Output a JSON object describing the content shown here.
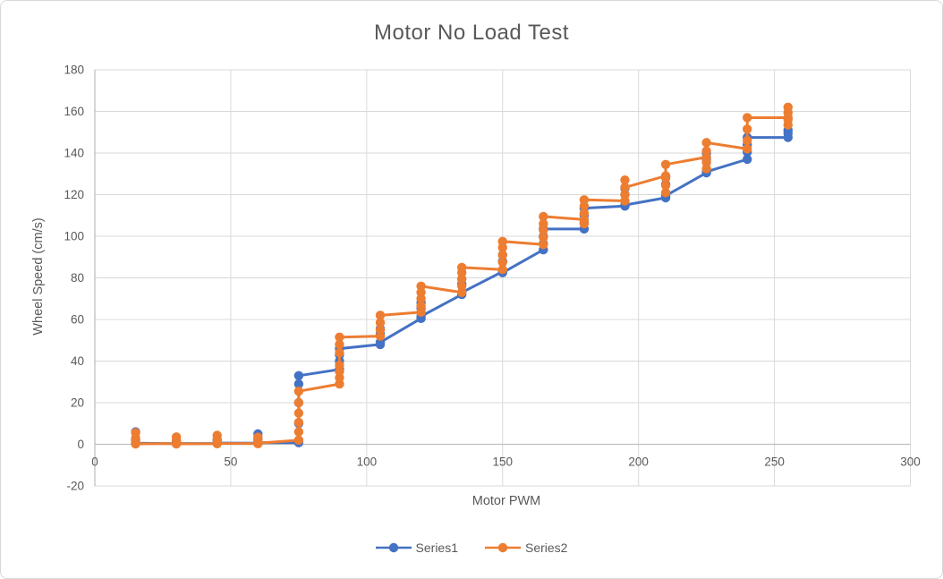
{
  "chart_data": {
    "type": "line",
    "title": "Motor No Load Test",
    "xlabel": "Motor PWM",
    "ylabel": "Wheel Speed (cm/s)",
    "xlim": [
      0,
      300
    ],
    "ylim": [
      -20,
      180
    ],
    "xticks": [
      0,
      50,
      100,
      150,
      200,
      250,
      300
    ],
    "yticks": [
      -20,
      0,
      20,
      40,
      60,
      80,
      100,
      120,
      140,
      160,
      180
    ],
    "grid": true,
    "legend_position": "bottom",
    "grid_color": "#d9d9d9",
    "axis_color": "#bfbfbf",
    "text_color": "#595959",
    "marker_radius": 5.2,
    "line_width": 3,
    "series": [
      {
        "name": "Series1",
        "color": "#4472C4",
        "points": [
          [
            15,
            6
          ],
          [
            15,
            2
          ],
          [
            15,
            0.5
          ],
          [
            30,
            0.3
          ],
          [
            30,
            1.5
          ],
          [
            30,
            0.4
          ],
          [
            45,
            0.4
          ],
          [
            45,
            1.8
          ],
          [
            45,
            0.6
          ],
          [
            60,
            0.5
          ],
          [
            60,
            5
          ],
          [
            60,
            2.5
          ],
          [
            60,
            0.8
          ],
          [
            75,
            0.8
          ],
          [
            75,
            10
          ],
          [
            75,
            20
          ],
          [
            75,
            29
          ],
          [
            75,
            33
          ],
          [
            90,
            36
          ],
          [
            90,
            40
          ],
          [
            90,
            43
          ],
          [
            90,
            46
          ],
          [
            105,
            48
          ],
          [
            105,
            55.5
          ],
          [
            105,
            53
          ],
          [
            105,
            49
          ],
          [
            120,
            60.5
          ],
          [
            120,
            68
          ],
          [
            120,
            65.5
          ],
          [
            120,
            61.5
          ],
          [
            135,
            72
          ],
          [
            135,
            79.5
          ],
          [
            135,
            77
          ],
          [
            135,
            73
          ],
          [
            150,
            83
          ],
          [
            150,
            91
          ],
          [
            150,
            88
          ],
          [
            150,
            82.5
          ],
          [
            165,
            93.5
          ],
          [
            165,
            96.5
          ],
          [
            165,
            100
          ],
          [
            165,
            103.5
          ],
          [
            180,
            103.5
          ],
          [
            180,
            106.5
          ],
          [
            180,
            110
          ],
          [
            180,
            113.5
          ],
          [
            195,
            114.5
          ],
          [
            195,
            123
          ],
          [
            195,
            120
          ],
          [
            195,
            115
          ],
          [
            210,
            118.5
          ],
          [
            210,
            128.5
          ],
          [
            210,
            125
          ],
          [
            210,
            119.5
          ],
          [
            225,
            130.5
          ],
          [
            225,
            140
          ],
          [
            225,
            137
          ],
          [
            225,
            131
          ],
          [
            240,
            137
          ],
          [
            240,
            140.5
          ],
          [
            240,
            144
          ],
          [
            240,
            147.5
          ],
          [
            255,
            147.5
          ],
          [
            255,
            151
          ],
          [
            255,
            149.5
          ]
        ]
      },
      {
        "name": "Series2",
        "color": "#ED7D31",
        "points": [
          [
            15,
            5.6
          ],
          [
            15,
            3
          ],
          [
            15,
            1
          ],
          [
            15,
            0.2
          ],
          [
            30,
            0.4
          ],
          [
            30,
            3.5
          ],
          [
            30,
            2
          ],
          [
            30,
            0.2
          ],
          [
            45,
            0.3
          ],
          [
            45,
            4.3
          ],
          [
            45,
            2.5
          ],
          [
            45,
            1
          ],
          [
            45,
            0.4
          ],
          [
            60,
            0.3
          ],
          [
            60,
            3.4
          ],
          [
            60,
            1.8
          ],
          [
            60,
            0.5
          ],
          [
            75,
            2
          ],
          [
            75,
            6
          ],
          [
            75,
            10.5
          ],
          [
            75,
            15
          ],
          [
            75,
            20
          ],
          [
            75,
            25.5
          ],
          [
            90,
            29
          ],
          [
            90,
            32
          ],
          [
            90,
            35
          ],
          [
            90,
            38
          ],
          [
            90,
            44
          ],
          [
            90,
            48
          ],
          [
            90,
            51.5
          ],
          [
            105,
            52
          ],
          [
            105,
            55
          ],
          [
            105,
            58.5
          ],
          [
            105,
            62
          ],
          [
            120,
            63.5
          ],
          [
            120,
            66.5
          ],
          [
            120,
            70
          ],
          [
            120,
            73
          ],
          [
            120,
            76
          ],
          [
            135,
            73
          ],
          [
            135,
            76
          ],
          [
            135,
            79.5
          ],
          [
            135,
            82.5
          ],
          [
            135,
            85
          ],
          [
            150,
            84
          ],
          [
            150,
            87.5
          ],
          [
            150,
            91
          ],
          [
            150,
            94.5
          ],
          [
            150,
            97.5
          ],
          [
            165,
            96
          ],
          [
            165,
            99.5
          ],
          [
            165,
            103
          ],
          [
            165,
            106
          ],
          [
            165,
            109.5
          ],
          [
            180,
            108
          ],
          [
            180,
            106
          ],
          [
            180,
            111
          ],
          [
            180,
            114.5
          ],
          [
            180,
            117.5
          ],
          [
            195,
            117
          ],
          [
            195,
            127
          ],
          [
            195,
            120
          ],
          [
            195,
            123.5
          ],
          [
            210,
            129
          ],
          [
            210,
            121
          ],
          [
            210,
            124.5
          ],
          [
            210,
            128
          ],
          [
            210,
            134.5
          ],
          [
            225,
            138
          ],
          [
            225,
            132.5
          ],
          [
            225,
            135.5
          ],
          [
            225,
            141
          ],
          [
            225,
            145
          ],
          [
            240,
            142
          ],
          [
            240,
            146
          ],
          [
            240,
            151.5
          ],
          [
            240,
            157
          ],
          [
            255,
            157
          ],
          [
            255,
            153.5
          ],
          [
            255,
            156
          ],
          [
            255,
            159.5
          ],
          [
            255,
            162
          ]
        ]
      }
    ]
  }
}
